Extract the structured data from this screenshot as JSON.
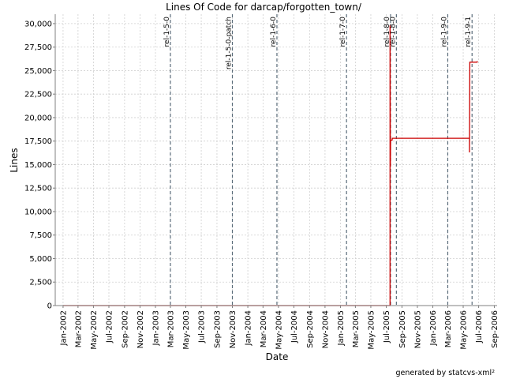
{
  "chart_data": {
    "type": "line",
    "title": "Lines Of Code for darcap/forgotten_town/",
    "xlabel": "Date",
    "ylabel": "Lines",
    "credit": "generated by statcvs-xml²",
    "x_range": [
      "2001-12-01",
      "2006-09-12"
    ],
    "ylim": [
      0,
      31000
    ],
    "y_ticks": [
      0,
      2500,
      5000,
      7500,
      10000,
      12500,
      15000,
      17500,
      20000,
      22500,
      25000,
      27500,
      30000
    ],
    "y_tick_labels": [
      "0",
      "2,500",
      "5,000",
      "7,500",
      "10,000",
      "12,500",
      "15,000",
      "17,500",
      "20,000",
      "22,500",
      "25,000",
      "27,500",
      "30,000"
    ],
    "x_ticks": [
      "2002-01-01",
      "2002-03-01",
      "2002-05-01",
      "2002-07-01",
      "2002-09-01",
      "2002-11-01",
      "2003-01-01",
      "2003-03-01",
      "2003-05-01",
      "2003-07-01",
      "2003-09-01",
      "2003-11-01",
      "2004-01-01",
      "2004-03-01",
      "2004-05-01",
      "2004-07-01",
      "2004-09-01",
      "2004-11-01",
      "2005-01-01",
      "2005-03-01",
      "2005-05-01",
      "2005-07-01",
      "2005-09-01",
      "2005-11-01",
      "2006-01-01",
      "2006-03-01",
      "2006-05-01",
      "2006-07-01",
      "2006-09-01"
    ],
    "x_tick_labels": [
      "Jan-2002",
      "Mar-2002",
      "May-2002",
      "Jul-2002",
      "Sep-2002",
      "Nov-2002",
      "Jan-2003",
      "Mar-2003",
      "May-2003",
      "Jul-2003",
      "Sep-2003",
      "Nov-2003",
      "Jan-2004",
      "Mar-2004",
      "May-2004",
      "Jul-2004",
      "Sep-2004",
      "Nov-2004",
      "Jan-2005",
      "Mar-2005",
      "May-2005",
      "Jul-2005",
      "Sep-2005",
      "Nov-2005",
      "Jan-2006",
      "Mar-2006",
      "May-2006",
      "Jul-2006",
      "Sep-2006"
    ],
    "grid": true,
    "series": [
      {
        "color": "#cc0000",
        "points": [
          [
            "2002-01-01",
            0
          ],
          [
            "2005-07-16",
            0
          ],
          [
            "2005-07-16",
            29800
          ],
          [
            "2005-07-17",
            14800
          ],
          [
            "2005-07-18",
            17600
          ],
          [
            "2005-07-24",
            17600
          ],
          [
            "2005-07-25",
            17800
          ],
          [
            "2006-05-26",
            17800
          ],
          [
            "2006-05-26",
            16300
          ],
          [
            "2006-05-27",
            25900
          ],
          [
            "2006-06-25",
            25900
          ],
          [
            "2006-06-26",
            26000
          ]
        ]
      }
    ],
    "markers": [
      {
        "label": "rel-1-5-0",
        "date": "2003-03-01"
      },
      {
        "label": "rel-1-5-0-patch",
        "date": "2003-11-01"
      },
      {
        "label": "rel-1-6-0",
        "date": "2004-04-25"
      },
      {
        "label": "rel-1-7-0",
        "date": "2005-01-25"
      },
      {
        "label": "rel-1-8-0",
        "date": "2005-07-18"
      },
      {
        "label": "rel-1-8-0",
        "date": "2005-08-10"
      },
      {
        "label": "rel-1-9-0",
        "date": "2006-03-01"
      },
      {
        "label": "rel-1-9-1",
        "date": "2006-06-05"
      }
    ],
    "colors": {
      "line": "#cc0000",
      "grid": "#d0d0d0",
      "marker": "#5a6c7a"
    }
  }
}
